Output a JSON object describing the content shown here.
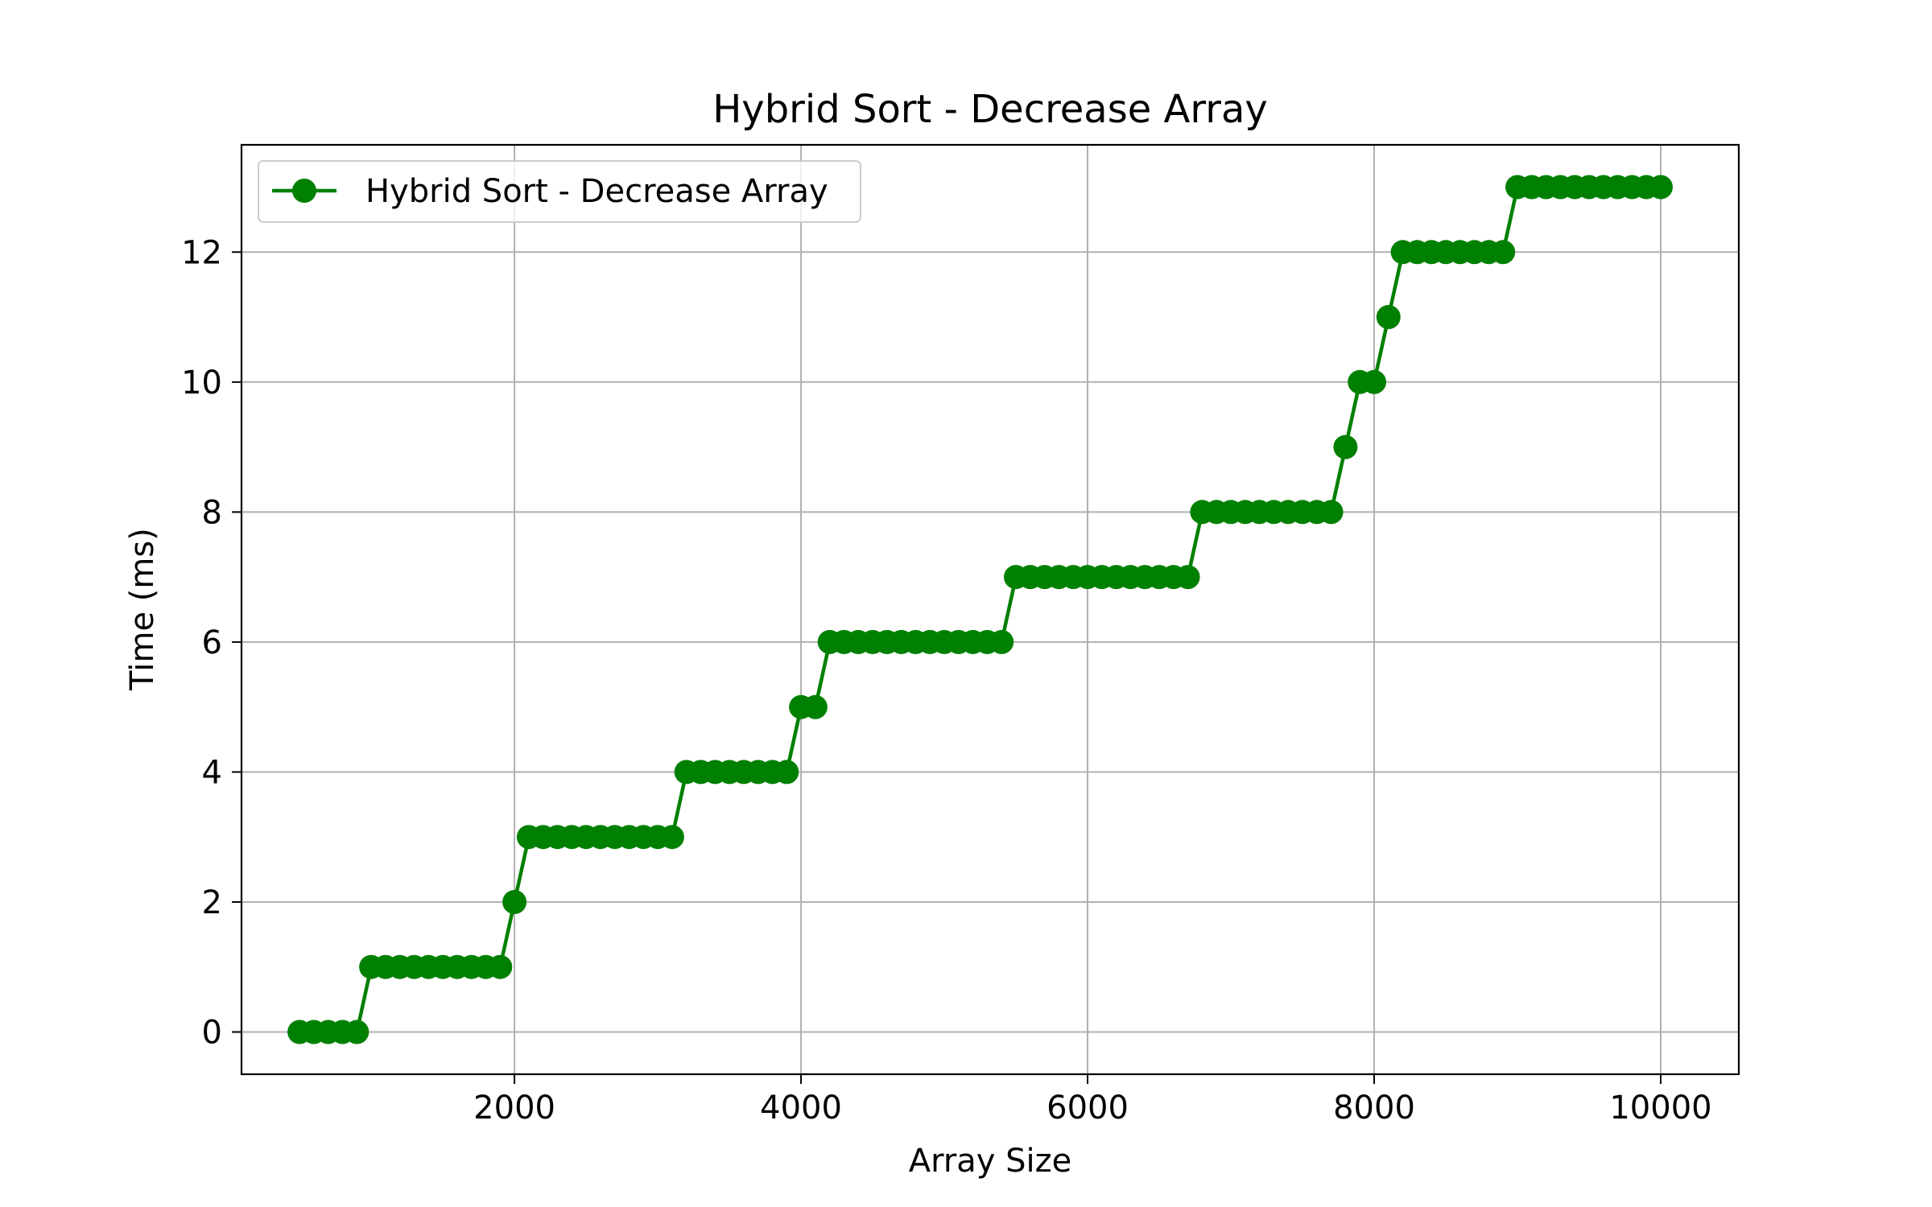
{
  "chart_data": {
    "type": "line",
    "title": "Hybrid Sort - Decrease Array",
    "xlabel": "Array Size",
    "ylabel": "Time (ms)",
    "xlim": [
      95,
      10545
    ],
    "ylim": [
      -0.65,
      13.65
    ],
    "xticks": [
      {
        "value": 2000,
        "label": "2000"
      },
      {
        "value": 4000,
        "label": "4000"
      },
      {
        "value": 6000,
        "label": "6000"
      },
      {
        "value": 8000,
        "label": "8000"
      },
      {
        "value": 10000,
        "label": "10000"
      }
    ],
    "yticks": [
      {
        "value": 0,
        "label": "0"
      },
      {
        "value": 2,
        "label": "2"
      },
      {
        "value": 4,
        "label": "4"
      },
      {
        "value": 6,
        "label": "6"
      },
      {
        "value": 8,
        "label": "8"
      },
      {
        "value": 10,
        "label": "10"
      },
      {
        "value": 12,
        "label": "12"
      }
    ],
    "grid": true,
    "legend_position": "top-left",
    "series": [
      {
        "name": "Hybrid Sort - Decrease Array",
        "color": "#008000",
        "marker": "circle",
        "x": [
          500,
          600,
          700,
          800,
          900,
          1000,
          1100,
          1200,
          1300,
          1400,
          1500,
          1600,
          1700,
          1800,
          1900,
          2000,
          2100,
          2200,
          2300,
          2400,
          2500,
          2600,
          2700,
          2800,
          2900,
          3000,
          3100,
          3200,
          3300,
          3400,
          3500,
          3600,
          3700,
          3800,
          3900,
          4000,
          4100,
          4200,
          4300,
          4400,
          4500,
          4600,
          4700,
          4800,
          4900,
          5000,
          5100,
          5200,
          5300,
          5400,
          5500,
          5600,
          5700,
          5800,
          5900,
          6000,
          6100,
          6200,
          6300,
          6400,
          6500,
          6600,
          6700,
          6800,
          6900,
          7000,
          7100,
          7200,
          7300,
          7400,
          7500,
          7600,
          7700,
          7800,
          7900,
          8000,
          8100,
          8200,
          8300,
          8400,
          8500,
          8600,
          8700,
          8800,
          8900,
          9000,
          9100,
          9200,
          9300,
          9400,
          9500,
          9600,
          9700,
          9800,
          9900,
          10000
        ],
        "y": [
          0,
          0,
          0,
          0,
          0,
          1,
          1,
          1,
          1,
          1,
          1,
          1,
          1,
          1,
          1,
          2,
          3,
          3,
          3,
          3,
          3,
          3,
          3,
          3,
          3,
          3,
          3,
          4,
          4,
          4,
          4,
          4,
          4,
          4,
          4,
          5,
          5,
          6,
          6,
          6,
          6,
          6,
          6,
          6,
          6,
          6,
          6,
          6,
          6,
          6,
          7,
          7,
          7,
          7,
          7,
          7,
          7,
          7,
          7,
          7,
          7,
          7,
          7,
          8,
          8,
          8,
          8,
          8,
          8,
          8,
          8,
          8,
          8,
          9,
          10,
          10,
          11,
          12,
          12,
          12,
          12,
          12,
          12,
          12,
          12,
          13,
          13,
          13,
          13,
          13,
          13,
          13,
          13,
          13,
          13,
          13
        ]
      }
    ]
  }
}
